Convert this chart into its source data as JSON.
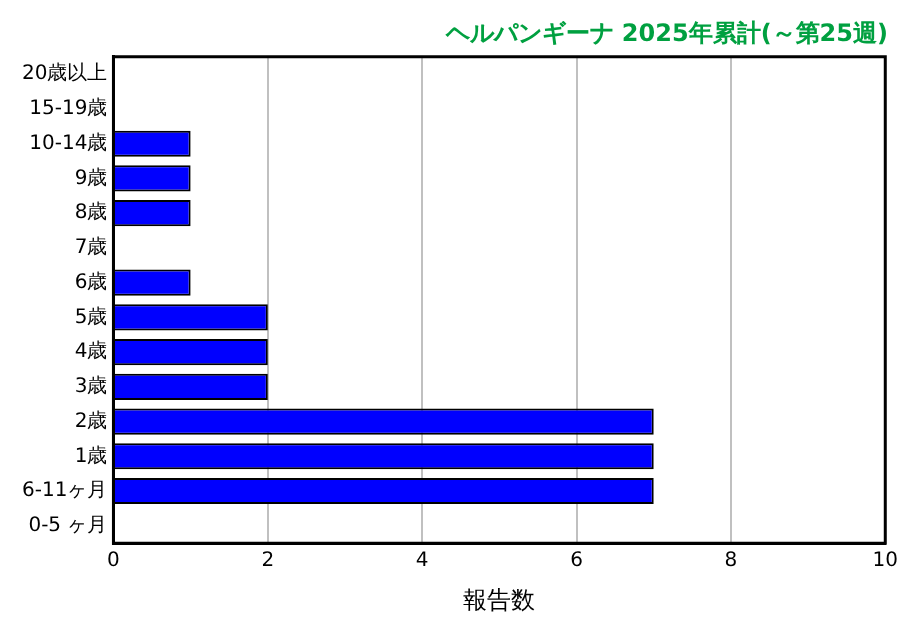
{
  "chart_data": {
    "type": "bar",
    "orientation": "horizontal",
    "title": "ヘルパンギーナ 2025年累計(～第25週)",
    "xlabel": "報告数",
    "categories": [
      "20歳以上",
      "15-19歳",
      "10-14歳",
      "9歳",
      "8歳",
      "7歳",
      "6歳",
      "5歳",
      "4歳",
      "3歳",
      "2歳",
      "1歳",
      "6-11ヶ月",
      "0-5 ヶ月"
    ],
    "values": [
      0,
      0,
      1,
      1,
      1,
      0,
      1,
      2,
      2,
      2,
      7,
      7,
      7,
      0
    ],
    "color": "#0000ff",
    "xlim": [
      0,
      10
    ],
    "xticks": [
      0,
      2,
      4,
      6,
      8,
      10
    ],
    "grid": "x",
    "legend": false
  }
}
